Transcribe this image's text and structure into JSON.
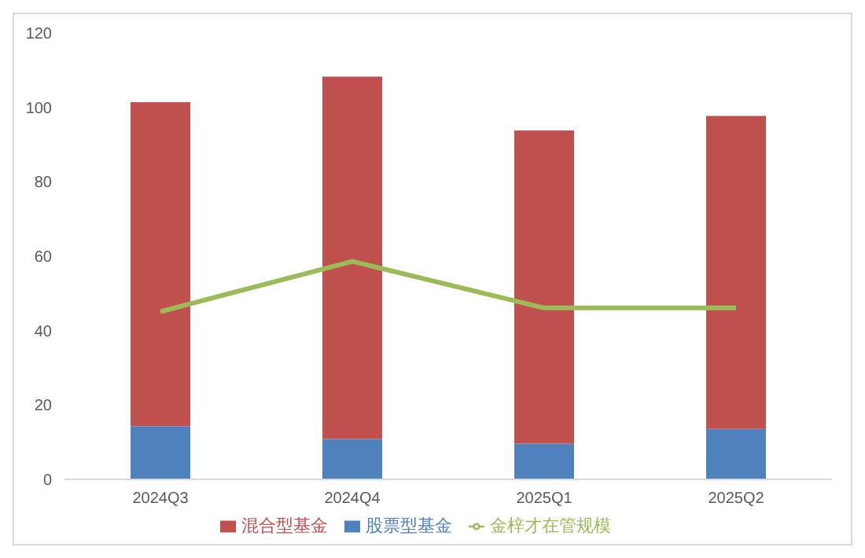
{
  "chart_data": {
    "type": "bar",
    "stacked": true,
    "categories": [
      "2024Q3",
      "2024Q4",
      "2025Q1",
      "2025Q2"
    ],
    "series": [
      {
        "name": "股票型基金",
        "color": "#4f81bd",
        "values": [
          14.3,
          10.9,
          9.6,
          13.6
        ]
      },
      {
        "name": "混合型基金",
        "color": "#c0504d",
        "values": [
          87.1,
          97.4,
          84.2,
          84.1
        ]
      },
      {
        "name": "金梓才在管规模",
        "type": "line",
        "color": "#9bbb59",
        "values": [
          45.1,
          58.6,
          46.1,
          46.1
        ]
      }
    ],
    "ylim": [
      0,
      120
    ],
    "yticks": [
      0,
      20,
      40,
      60,
      80,
      100,
      120
    ],
    "grid": false,
    "legend": "bottom",
    "marker": "none"
  }
}
